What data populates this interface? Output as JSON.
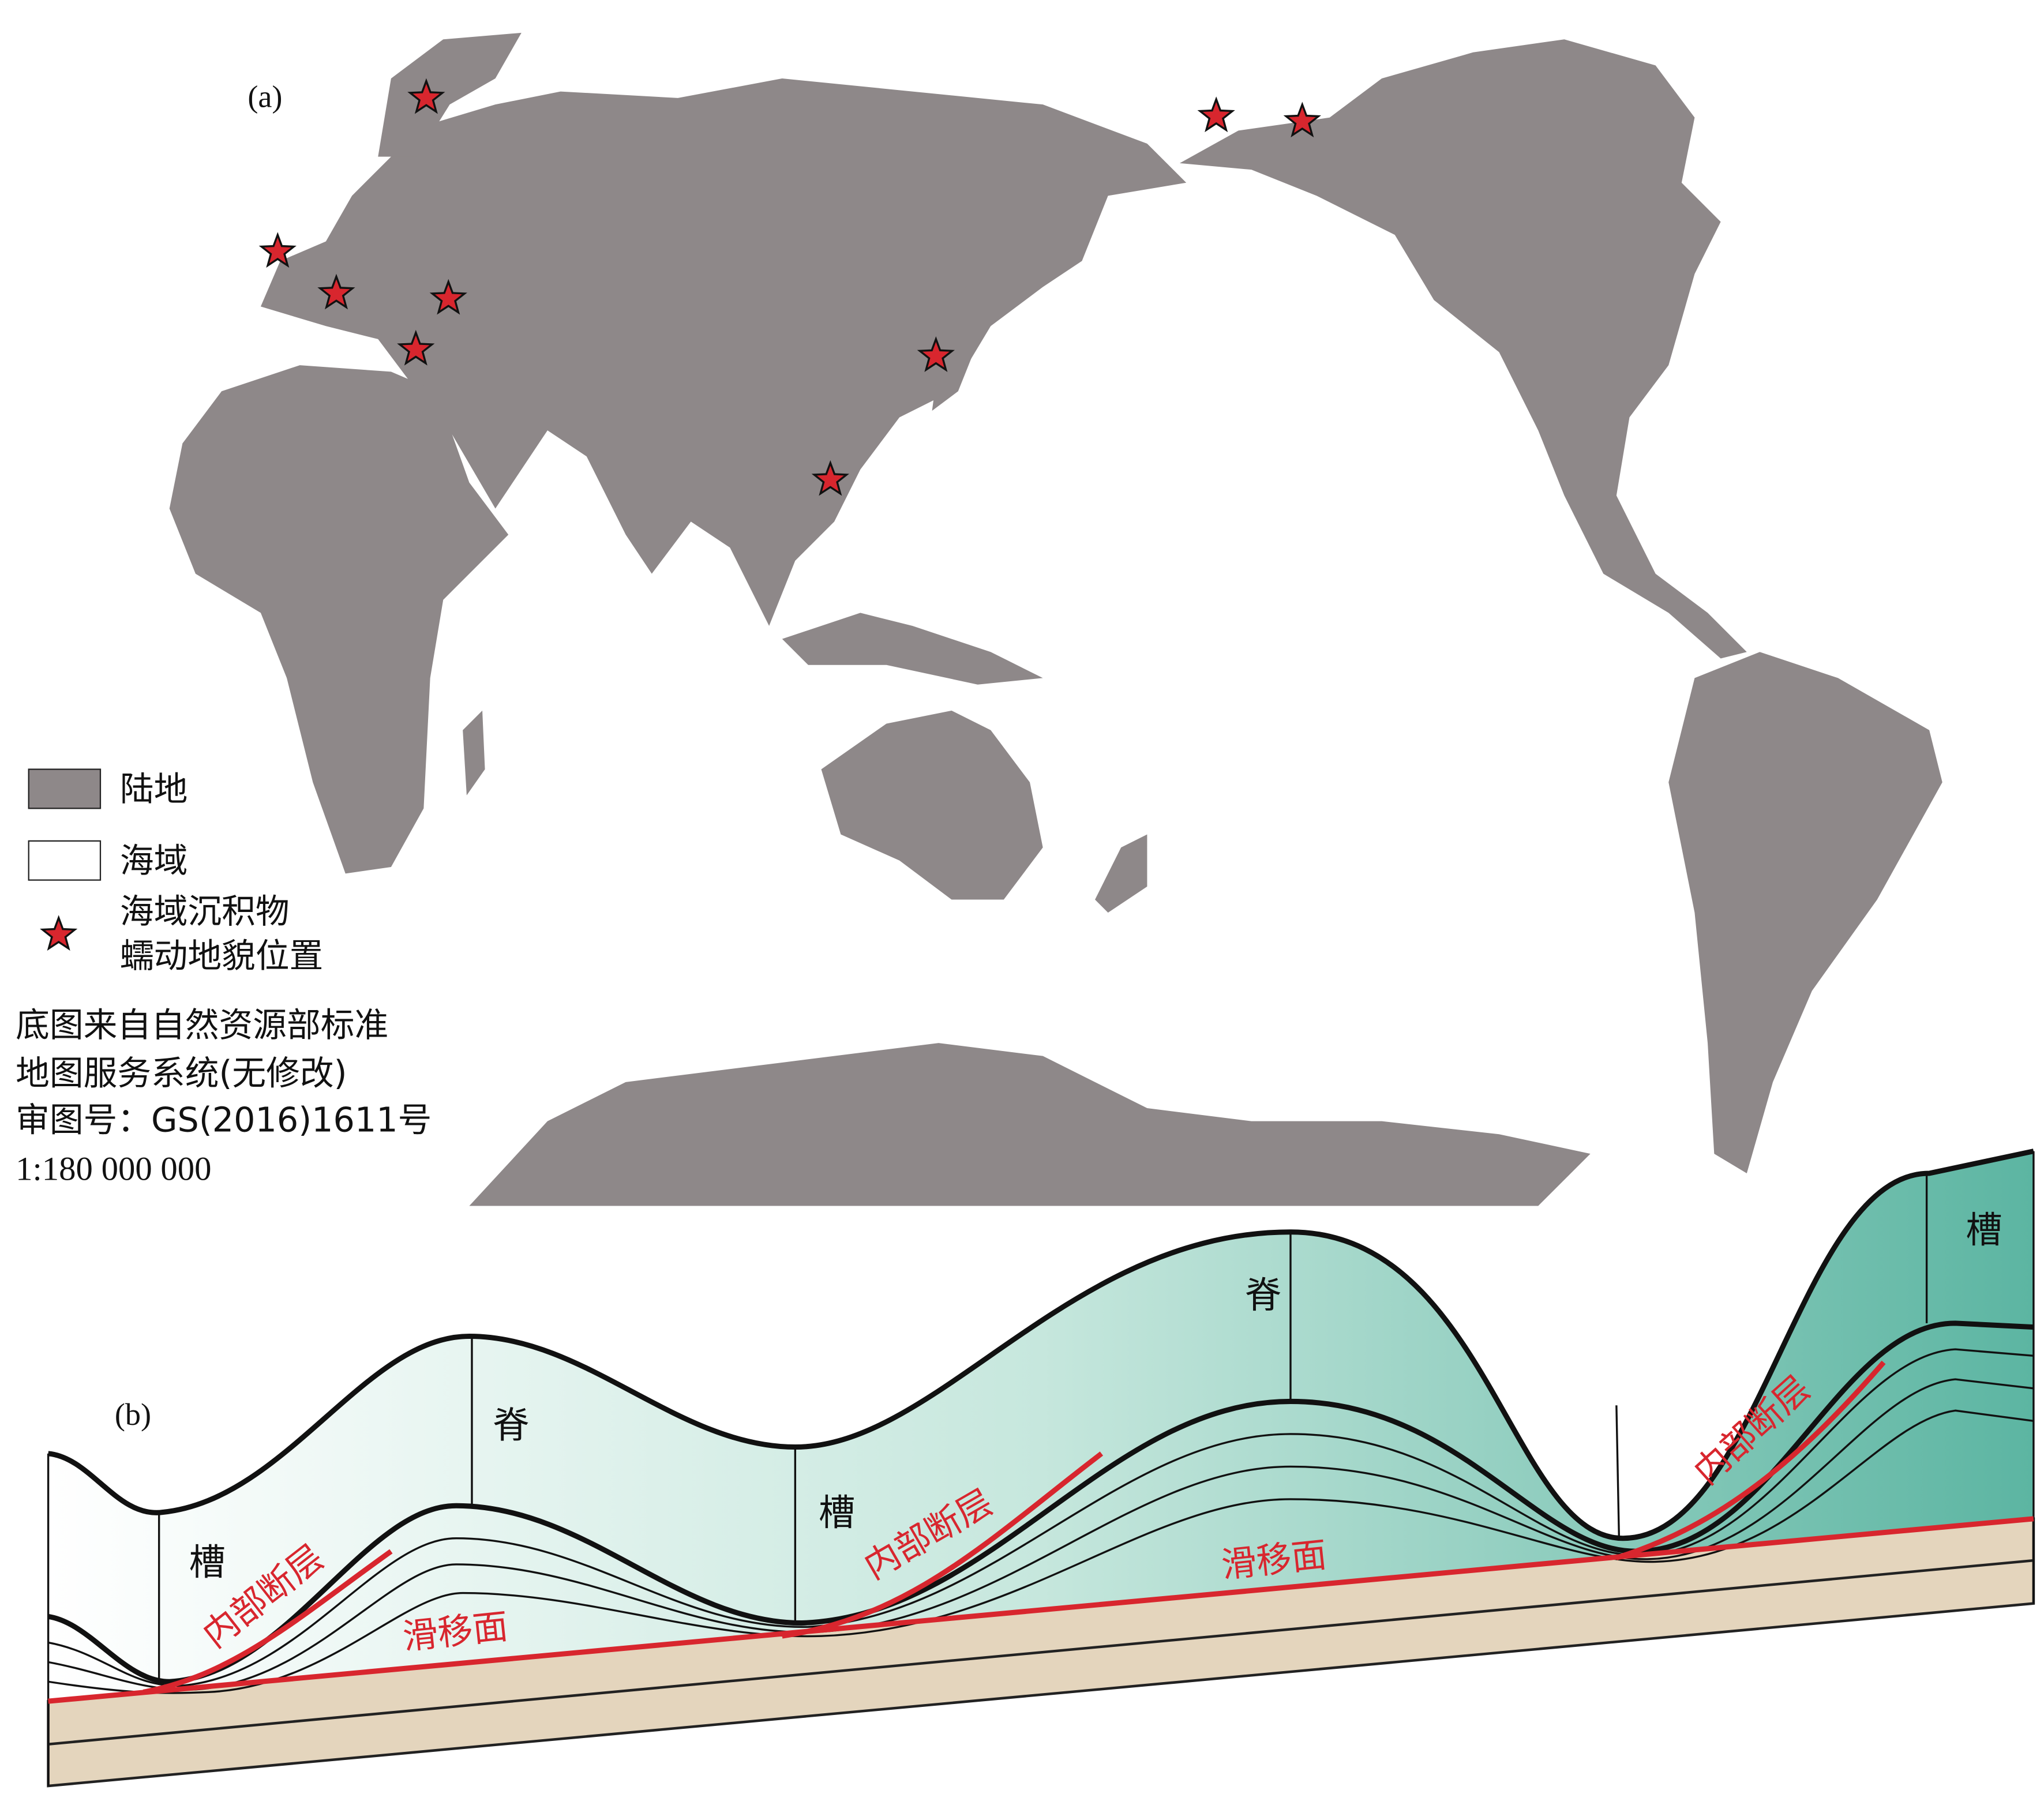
{
  "panel_a": {
    "label": "(a)",
    "legend": {
      "land": "陆地",
      "sea": "海域",
      "site_lines": [
        "海域沉积物",
        "蠕动地貌位置"
      ]
    },
    "note_lines": [
      "底图来自自然资源部标准",
      "地图服务系统(无修改)",
      "审图号：GS(2016)1611号",
      "1:180 000 000"
    ]
  },
  "panel_b": {
    "label": "(b)",
    "terrain_labels": [
      "槽",
      "脊",
      "槽",
      "脊",
      "槽"
    ],
    "fault_labels": [
      "内部断层",
      "内部断层",
      "内部断层"
    ],
    "slip_labels": [
      "滑移面",
      "滑移面"
    ]
  }
}
